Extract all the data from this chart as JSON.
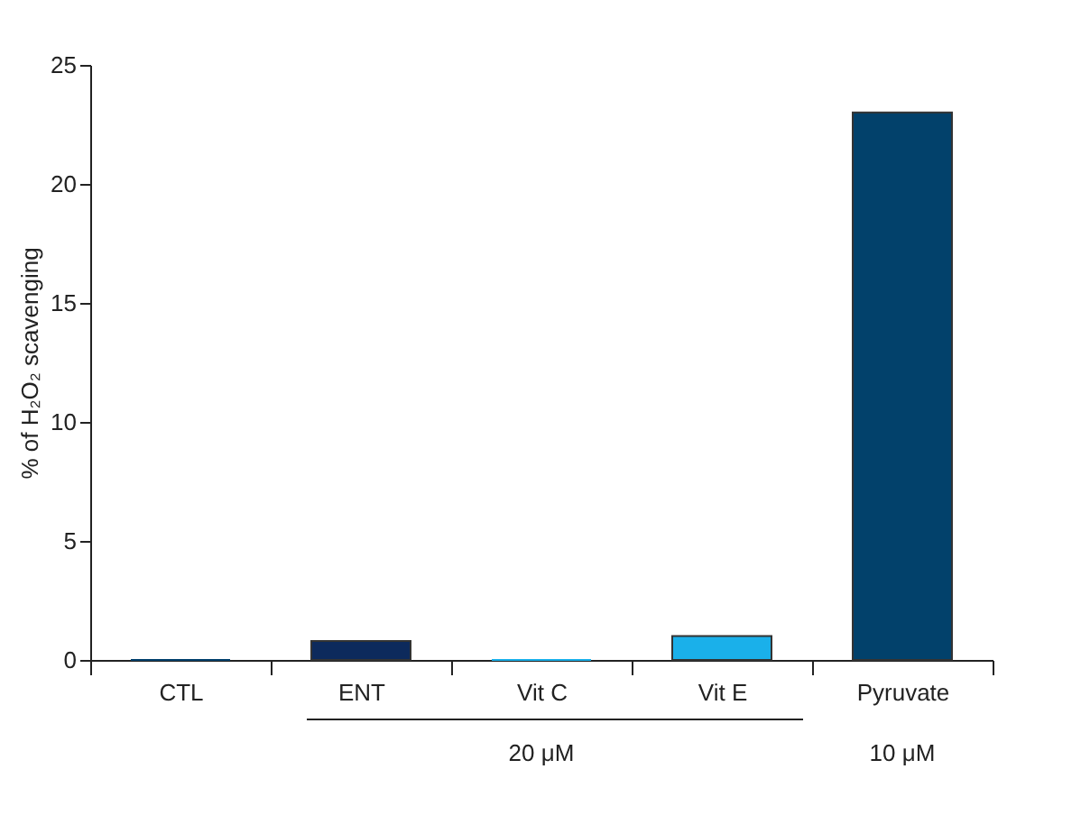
{
  "chart_data": {
    "type": "bar",
    "categories": [
      "CTL",
      "ENT",
      "Vit C",
      "Vit E",
      "Pyruvate"
    ],
    "values": [
      0,
      0.8,
      0,
      1.0,
      23.0
    ],
    "colors": [
      "#003f6b",
      "#0d2a5c",
      "#1ab0ea",
      "#1ab0ea",
      "#02416b"
    ],
    "ylabel": "% of H₂O₂ scavenging",
    "ylim": [
      0,
      25
    ],
    "yticks": [
      0,
      5,
      10,
      15,
      20,
      25
    ],
    "grid": false,
    "legend": false,
    "annotations": [
      "20 μM",
      "10 μM"
    ]
  }
}
